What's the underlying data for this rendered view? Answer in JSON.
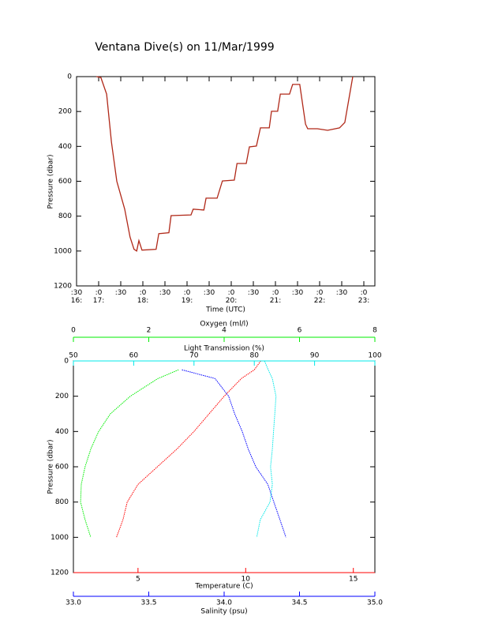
{
  "chart_data": [
    {
      "type": "line",
      "title": "Ventana Dive(s) on 11/Mar/1999",
      "xlabel": "Time (UTC)",
      "ylabel": "Pressure (dbar)",
      "color": "#b02818",
      "x": [
        16.95,
        17.05,
        17.18,
        17.29,
        17.41,
        17.59,
        17.71,
        17.8,
        17.86,
        17.91,
        17.98,
        18.3,
        18.36,
        18.59,
        18.64,
        19.09,
        19.14,
        19.38,
        19.43,
        19.68,
        19.8,
        20.07,
        20.13,
        20.34,
        20.41,
        20.57,
        20.66,
        20.86,
        20.91,
        21.05,
        21.11,
        21.32,
        21.39,
        21.55,
        21.68,
        21.73,
        21.95,
        22.18,
        22.45,
        22.57,
        22.75
      ],
      "values": [
        0,
        5,
        100,
        375,
        600,
        760,
        920,
        990,
        1000,
        940,
        995,
        990,
        900,
        895,
        797,
        793,
        760,
        765,
        697,
        697,
        598,
        593,
        498,
        498,
        403,
        398,
        294,
        294,
        199,
        199,
        100,
        100,
        45,
        45,
        272,
        299,
        299,
        308,
        294,
        263,
        0
      ],
      "xlim": [
        16.5,
        23.25
      ],
      "xticks": [
        {
          "value": 16.5,
          "label": ":30\n16:"
        },
        {
          "value": 17,
          "label": ":0\n17:"
        },
        {
          "value": 17.5,
          "label": ":30"
        },
        {
          "value": 18,
          "label": ":0\n18:"
        },
        {
          "value": 18.5,
          "label": ":30"
        },
        {
          "value": 19,
          "label": ":0\n19:"
        },
        {
          "value": 19.5,
          "label": ":30"
        },
        {
          "value": 20,
          "label": ":0\n20:"
        },
        {
          "value": 20.5,
          "label": ":30"
        },
        {
          "value": 21,
          "label": ":0\n21:"
        },
        {
          "value": 21.5,
          "label": ":30"
        },
        {
          "value": 22,
          "label": ":0\n22:"
        },
        {
          "value": 22.5,
          "label": ":30"
        },
        {
          "value": 23,
          "label": ":0\n23:"
        }
      ],
      "ylim": [
        0,
        1200
      ],
      "yticks": [
        0,
        200,
        400,
        600,
        800,
        1000,
        1200
      ],
      "yreversed": true
    },
    {
      "type": "profile",
      "ylabel": "Pressure (dbar)",
      "y": [
        0,
        50,
        100,
        200,
        300,
        400,
        500,
        600,
        700,
        800,
        900,
        1000
      ],
      "ylim": [
        0,
        1200
      ],
      "yticks": [
        0,
        200,
        400,
        600,
        800,
        1000,
        1200
      ],
      "yreversed": true,
      "series": [
        {
          "name": "Temperature (C)",
          "color": "#ff0000",
          "xlim": [
            2,
            16
          ],
          "xticks": [
            5,
            10,
            15
          ],
          "values": [
            10.7,
            10.4,
            9.8,
            9.0,
            8.3,
            7.6,
            6.8,
            5.9,
            5.0,
            4.5,
            4.3,
            4.0
          ]
        },
        {
          "name": "Salinity (psu)",
          "color": "#0000ff",
          "xlim": [
            33,
            35
          ],
          "xticks": [
            {
              "value": 33,
              "label": "33.0"
            },
            33.5,
            {
              "value": 34,
              "label": "34.0"
            },
            34.5,
            {
              "value": 35,
              "label": "35.0"
            }
          ],
          "values": [
            null,
            33.72,
            33.94,
            34.03,
            34.07,
            34.12,
            34.16,
            34.21,
            34.29,
            34.33,
            34.37,
            34.41
          ]
        },
        {
          "name": "Oxygen (ml/l)",
          "color": "#00ee00",
          "xlim": [
            0,
            8
          ],
          "xticks": [
            0,
            2,
            4,
            6,
            8
          ],
          "values": [
            null,
            2.79,
            2.24,
            1.51,
            0.98,
            0.67,
            0.46,
            0.31,
            0.21,
            0.19,
            0.31,
            0.46
          ]
        },
        {
          "name": "Light Transmission (%)",
          "color": "#00e8e8",
          "xlim": [
            50,
            100
          ],
          "xticks": [
            50,
            60,
            70,
            80,
            90,
            100
          ],
          "values": [
            81.7,
            82.3,
            83.0,
            83.6,
            83.4,
            83.2,
            83.0,
            82.7,
            83.0,
            82.6,
            81.0,
            80.4
          ]
        }
      ]
    }
  ]
}
